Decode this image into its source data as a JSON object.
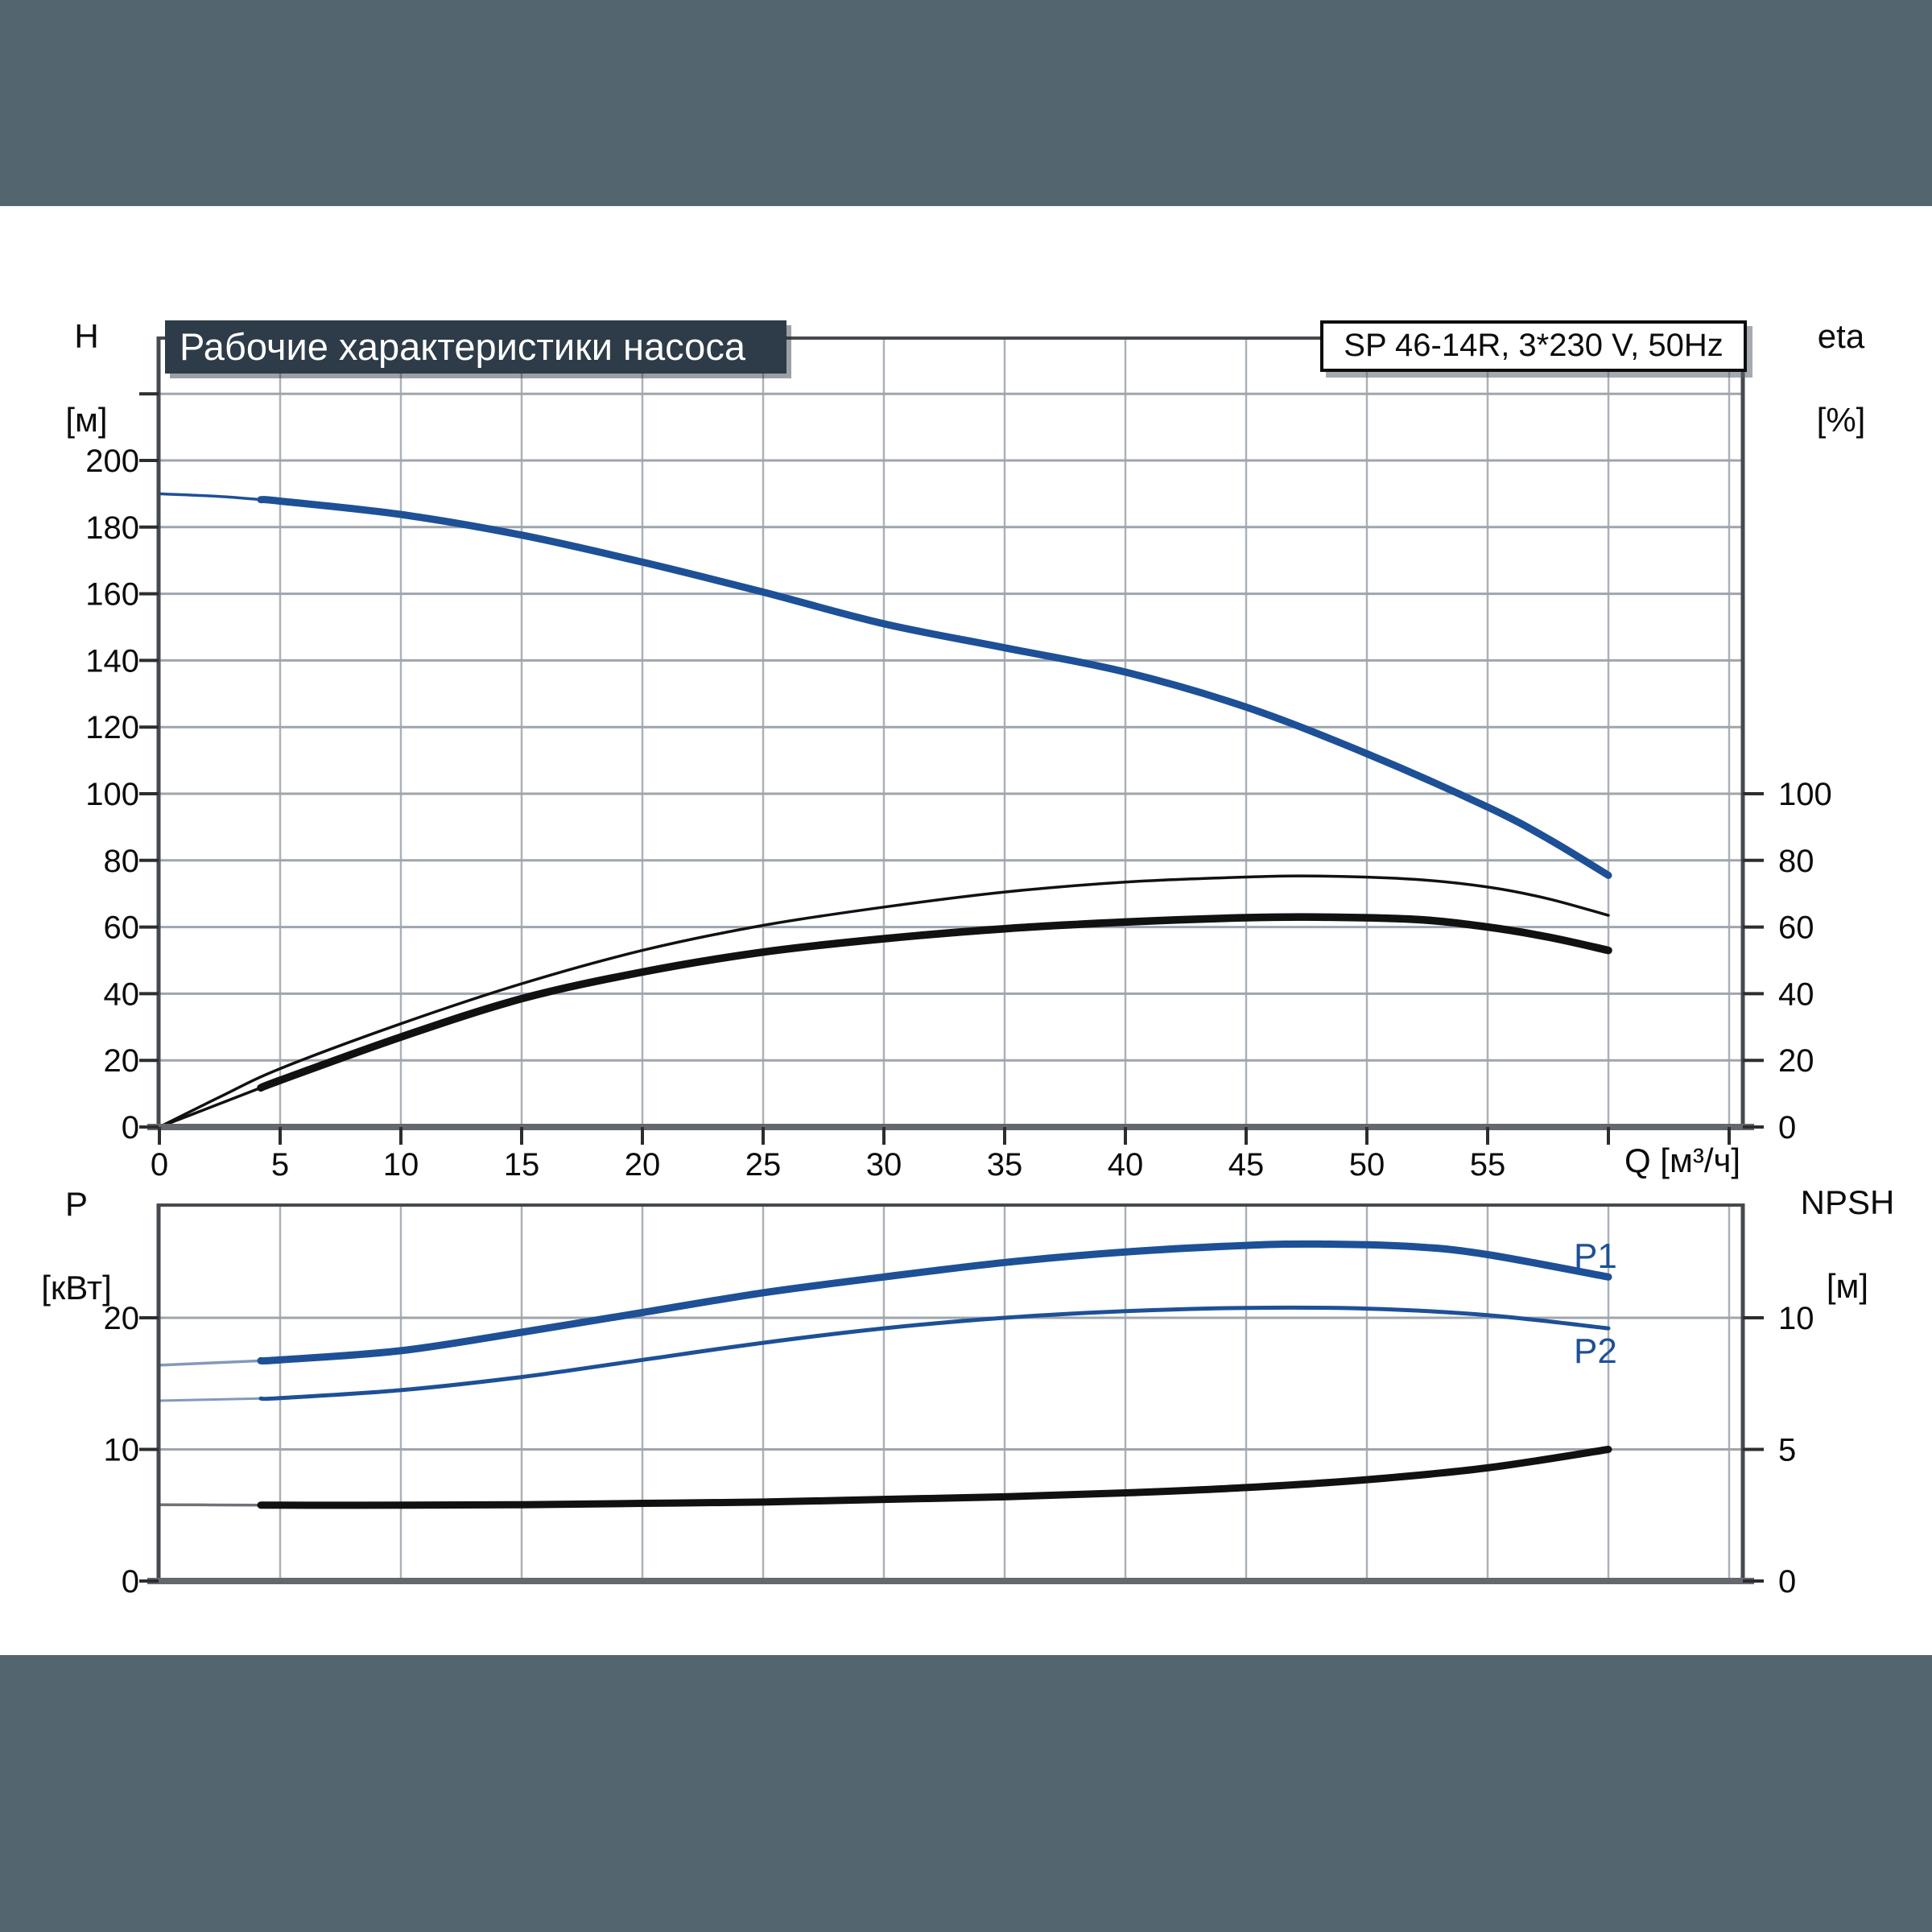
{
  "header": {
    "title": "Рабочие характеристики насоса",
    "model": "SP 46-14R, 3*230 V, 50Hz"
  },
  "axis_labels": {
    "top_left_name": "H",
    "top_left_unit": "[м]",
    "top_right_name": "eta",
    "top_right_unit": "[%]",
    "x_label": "Q [м³/ч]",
    "bottom_left_name": "P",
    "bottom_left_unit": "[кВт]",
    "bottom_right_name": "NPSH",
    "bottom_right_unit": "[м]"
  },
  "curve_labels": {
    "p1": "P1",
    "p2": "P2"
  },
  "colors": {
    "blue": "#1d5096",
    "blue_faded": "#8299bb",
    "black": "#111111",
    "gray": "#6f7276",
    "band": "#53656F",
    "banner_bg": "#2E3B48",
    "axis": "#46494d",
    "axis_bottom": "#64676b",
    "grid_h": "#9fa5ad",
    "grid_v": "#abb1b8",
    "tick": "#2b2d30"
  },
  "chart_data": [
    {
      "type": "line",
      "name": "pump-performance-top",
      "x_axis": {
        "label": "Q [м³/ч]",
        "min": 0,
        "max": 65.6,
        "all_ticks": [
          0,
          5,
          10,
          15,
          20,
          25,
          30,
          35,
          40,
          45,
          50,
          55,
          60,
          65
        ],
        "labeled_ticks": [
          0,
          5,
          10,
          15,
          20,
          25,
          30,
          35,
          40,
          45,
          50,
          55
        ],
        "gridlines": [
          5,
          10,
          15,
          20,
          25,
          30,
          35,
          40,
          45,
          50,
          55,
          60,
          65
        ]
      },
      "left_axis": {
        "name": "H",
        "unit": "[м]",
        "min": 0,
        "max": 236,
        "labeled_ticks": [
          0,
          20,
          40,
          60,
          80,
          100,
          120,
          140,
          160,
          180,
          200
        ],
        "all_ticks": [
          0,
          20,
          40,
          60,
          80,
          100,
          120,
          140,
          160,
          180,
          200,
          220
        ],
        "gridlines": [
          20,
          40,
          60,
          80,
          100,
          120,
          140,
          160,
          180,
          200,
          220
        ]
      },
      "right_axis": {
        "name": "eta",
        "unit": "[%]",
        "min": 0,
        "labeled_ticks": [
          0,
          20,
          40,
          60,
          80,
          100
        ],
        "all_ticks": [
          0,
          20,
          40,
          60,
          80,
          100
        ]
      },
      "series": [
        {
          "id": "head-curve",
          "axis": "left",
          "color": "blue",
          "thin_color": "blue",
          "thick_width": 9,
          "thin_width": 3.5,
          "split_q": 4.2,
          "points": [
            [
              0,
              190
            ],
            [
              2.5,
              189.2
            ],
            [
              5,
              187.8
            ],
            [
              10,
              183.8
            ],
            [
              15,
              177.6
            ],
            [
              20,
              169.5
            ],
            [
              25,
              160.5
            ],
            [
              30,
              151
            ],
            [
              35,
              143.8
            ],
            [
              40,
              136.5
            ],
            [
              45,
              126
            ],
            [
              50,
              112
            ],
            [
              55,
              96
            ],
            [
              57.5,
              86.5
            ],
            [
              60,
              75.5
            ]
          ]
        },
        {
          "id": "eta-thin-curve",
          "axis": "right",
          "color": "black",
          "thin_color": "black",
          "thick_width": 3.5,
          "thin_width": 3.5,
          "split_q": null,
          "points": [
            [
              0,
              0
            ],
            [
              2.5,
              9
            ],
            [
              5,
              17.5
            ],
            [
              10,
              31
            ],
            [
              15,
              43
            ],
            [
              20,
              53
            ],
            [
              25,
              60.5
            ],
            [
              30,
              66
            ],
            [
              35,
              70.5
            ],
            [
              40,
              73.5
            ],
            [
              45,
              75
            ],
            [
              48,
              75.3
            ],
            [
              52,
              74.3
            ],
            [
              55,
              72
            ],
            [
              57.5,
              68.5
            ],
            [
              60,
              63.5
            ]
          ]
        },
        {
          "id": "eta-thick-curve",
          "axis": "right",
          "color": "black",
          "thin_color": "black",
          "thick_width": 9.5,
          "thin_width": 3.5,
          "split_q": 4.2,
          "points": [
            [
              0,
              0
            ],
            [
              2.5,
              7
            ],
            [
              5,
              14
            ],
            [
              10,
              27
            ],
            [
              15,
              38.5
            ],
            [
              20,
              46.5
            ],
            [
              25,
              52.5
            ],
            [
              30,
              56.5
            ],
            [
              35,
              59.5
            ],
            [
              40,
              61.5
            ],
            [
              45,
              62.8
            ],
            [
              48,
              63
            ],
            [
              52,
              62.3
            ],
            [
              55,
              60
            ],
            [
              57.5,
              57
            ],
            [
              60,
              53
            ]
          ]
        }
      ]
    },
    {
      "type": "line",
      "name": "power-npsh-bottom",
      "x_axis": {
        "label": "",
        "min": 0,
        "max": 65.6,
        "all_ticks": [],
        "labeled_ticks": [],
        "gridlines": [
          5,
          10,
          15,
          20,
          25,
          30,
          35,
          40,
          45,
          50,
          55,
          60,
          65
        ]
      },
      "left_axis": {
        "name": "P",
        "unit": "[кВт]",
        "min": 0,
        "max": 28.6,
        "labeled_ticks": [
          0,
          10,
          20
        ],
        "all_ticks": [
          0,
          10,
          20
        ],
        "gridlines": [
          10,
          20
        ]
      },
      "right_axis": {
        "name": "NPSH",
        "unit": "[м]",
        "min": 0,
        "labeled_ticks": [
          0,
          5,
          10
        ],
        "all_ticks": [
          0,
          5,
          10
        ]
      },
      "series": [
        {
          "id": "p1-curve",
          "label": "P1",
          "axis": "left",
          "color": "blue",
          "thin_color": "blue_faded",
          "thick_width": 9,
          "thin_width": 3.5,
          "split_q": 4.2,
          "points": [
            [
              0,
              16.4
            ],
            [
              5,
              16.8
            ],
            [
              10,
              17.5
            ],
            [
              15,
              18.9
            ],
            [
              20,
              20.4
            ],
            [
              25,
              21.9
            ],
            [
              30,
              23.1
            ],
            [
              35,
              24.2
            ],
            [
              40,
              25.0
            ],
            [
              45,
              25.5
            ],
            [
              48,
              25.6
            ],
            [
              52,
              25.4
            ],
            [
              55,
              24.8
            ],
            [
              60,
              23.1
            ]
          ]
        },
        {
          "id": "p2-curve",
          "label": "P2",
          "axis": "left",
          "color": "blue",
          "thin_color": "blue_faded",
          "thick_width": 5,
          "thin_width": 3,
          "split_q": 4.2,
          "points": [
            [
              0,
              13.7
            ],
            [
              5,
              13.9
            ],
            [
              10,
              14.5
            ],
            [
              15,
              15.5
            ],
            [
              20,
              16.8
            ],
            [
              25,
              18.1
            ],
            [
              30,
              19.2
            ],
            [
              35,
              20.0
            ],
            [
              40,
              20.5
            ],
            [
              45,
              20.75
            ],
            [
              50,
              20.7
            ],
            [
              55,
              20.2
            ],
            [
              60,
              19.2
            ]
          ]
        },
        {
          "id": "npsh-curve",
          "axis": "right",
          "color": "black",
          "thin_color": "gray",
          "thick_width": 9,
          "thin_width": 3.5,
          "split_q": 4.2,
          "points": [
            [
              0,
              2.9
            ],
            [
              5,
              2.88
            ],
            [
              10,
              2.88
            ],
            [
              15,
              2.9
            ],
            [
              20,
              2.95
            ],
            [
              25,
              3.0
            ],
            [
              30,
              3.1
            ],
            [
              35,
              3.2
            ],
            [
              40,
              3.35
            ],
            [
              45,
              3.55
            ],
            [
              50,
              3.85
            ],
            [
              55,
              4.3
            ],
            [
              60,
              5.0
            ]
          ]
        }
      ]
    }
  ]
}
